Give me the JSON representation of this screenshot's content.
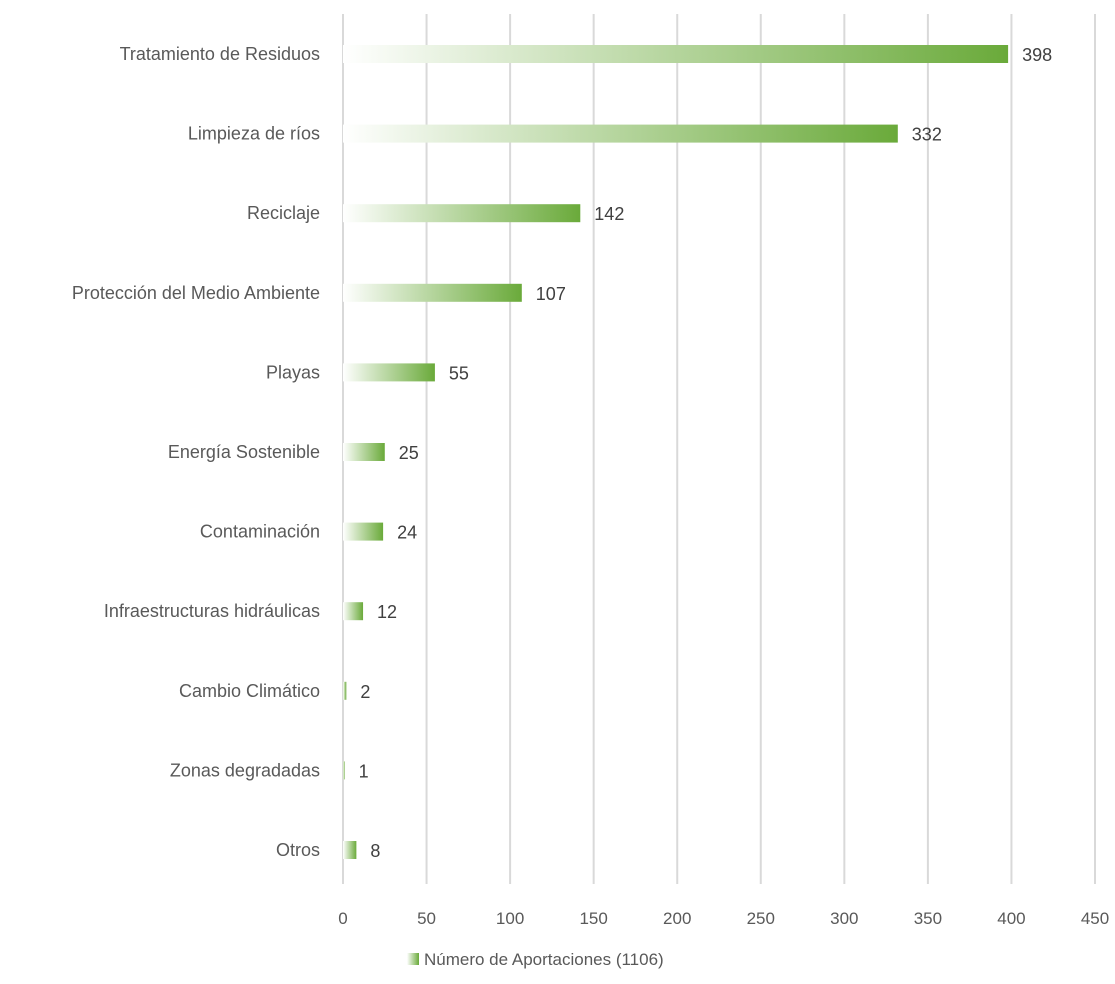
{
  "chart_data": {
    "type": "bar",
    "orientation": "horizontal",
    "categories": [
      "Tratamiento de Residuos",
      "Limpieza de ríos",
      "Reciclaje",
      "Protección del Medio Ambiente",
      "Playas",
      "Energía Sostenible",
      "Contaminación",
      "Infraestructuras hidráulicas",
      "Cambio Climático",
      "Zonas degradadas",
      "Otros"
    ],
    "values": [
      398,
      332,
      142,
      107,
      55,
      25,
      24,
      12,
      2,
      1,
      8
    ],
    "series": [
      {
        "name": "Número de Aportaciones (1106)",
        "values": [
          398,
          332,
          142,
          107,
          55,
          25,
          24,
          12,
          2,
          1,
          8
        ]
      }
    ],
    "x_ticks": [
      "0",
      "50",
      "100",
      "150",
      "200",
      "250",
      "300",
      "350",
      "400",
      "450"
    ],
    "xlim": [
      0,
      450
    ],
    "grid": "vertical",
    "legend_position": "bottom",
    "bar_color": "#6aaa3a",
    "title": "",
    "xlabel": "",
    "ylabel": ""
  }
}
